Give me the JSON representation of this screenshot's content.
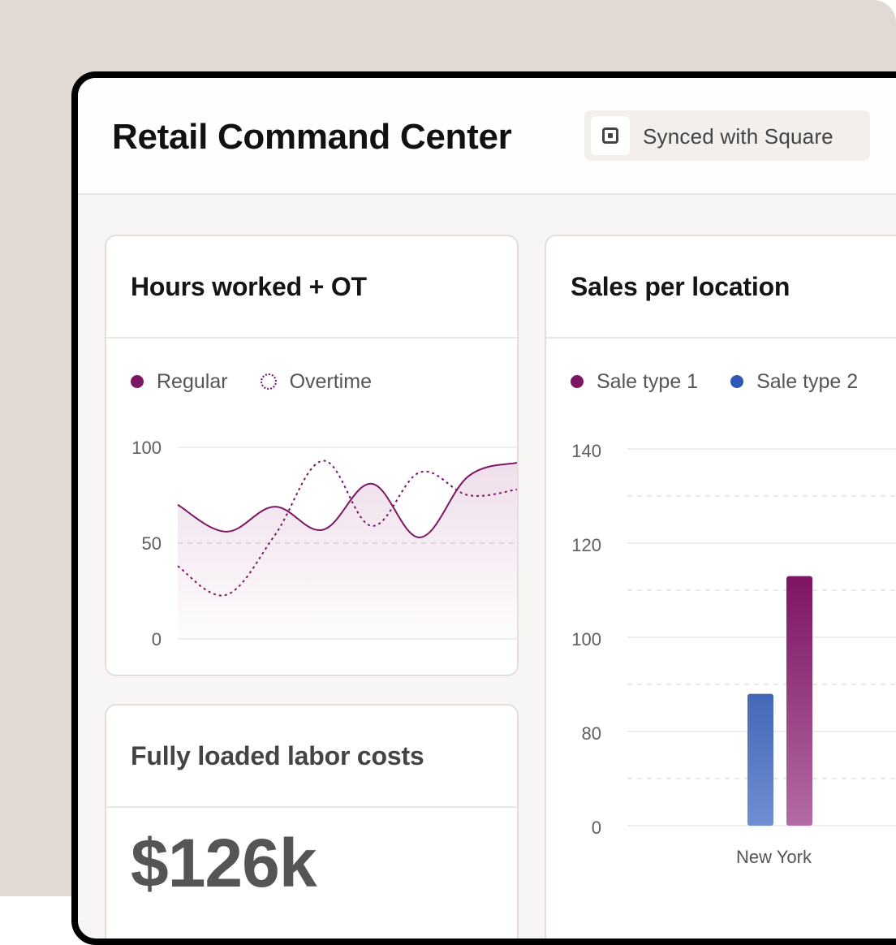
{
  "header": {
    "title": "Retail Command Center",
    "sync_label": "Synced with Square",
    "sync_icon": "square-logo-icon"
  },
  "colors": {
    "regular": "#7b1663",
    "sale_type_1": "#7b1663",
    "sale_type_2": "#2f58b6"
  },
  "hours_card": {
    "title": "Hours worked + OT",
    "legend": [
      {
        "label": "Regular",
        "style": "solid"
      },
      {
        "label": "Overtime",
        "style": "dashed"
      }
    ],
    "y_ticks": [
      "100",
      "50",
      "0"
    ]
  },
  "labor_card": {
    "title": "Fully loaded labor costs",
    "value": "$126k"
  },
  "sales_card": {
    "title": "Sales per location",
    "legend": [
      {
        "label": "Sale type 1"
      },
      {
        "label": "Sale type 2"
      }
    ],
    "y_ticks": [
      "140",
      "120",
      "100",
      "80",
      "0"
    ]
  },
  "chart_data": [
    {
      "type": "line",
      "title": "Hours worked + OT",
      "ylim": [
        0,
        100
      ],
      "grid": true,
      "legend_placement": "top-left",
      "series": [
        {
          "name": "Regular",
          "values": [
            70,
            56,
            69,
            57,
            81,
            53,
            85,
            92
          ]
        },
        {
          "name": "Overtime",
          "values": [
            38,
            23,
            54,
            93,
            59,
            87,
            75,
            78
          ]
        }
      ]
    },
    {
      "type": "bar",
      "title": "Sales per location",
      "categories": [
        "New York"
      ],
      "y_ticks": [
        "0",
        "80",
        "100",
        "120",
        "140"
      ],
      "grid": true,
      "legend_placement": "top-left",
      "series": [
        {
          "name": "Sale type 2",
          "values": [
            88
          ]
        },
        {
          "name": "Sale type 1",
          "values": [
            113
          ]
        }
      ]
    }
  ]
}
